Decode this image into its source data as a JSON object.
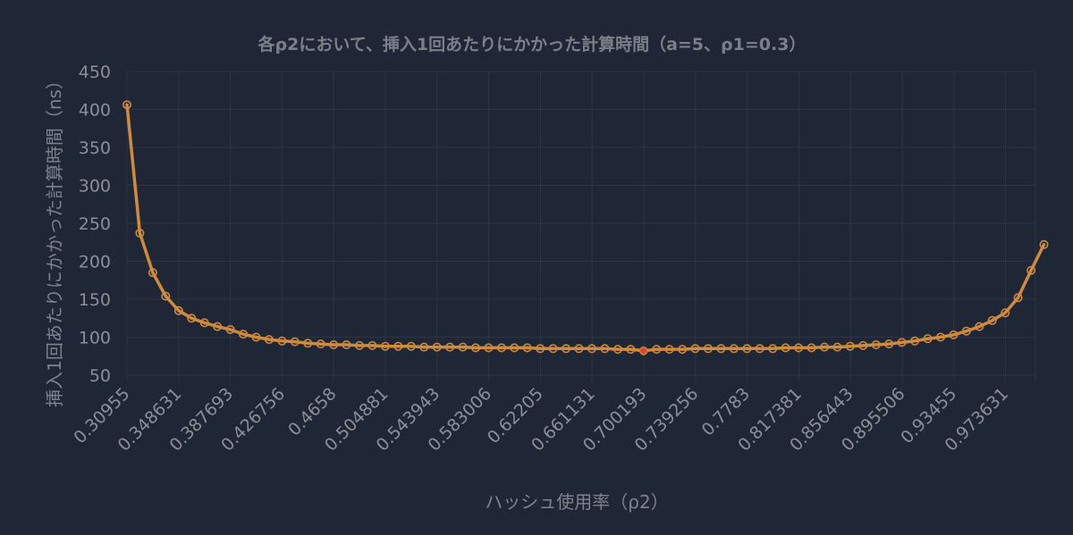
{
  "chart_data": {
    "type": "line",
    "title": "各ρ2において、挿入1回あたりにかかった計算時間（a=5、ρ1=0.3）",
    "xlabel": "ハッシュ使用率（ρ2）",
    "ylabel": "挿入1回あたりにかかった計算時間（ns）",
    "ylim": [
      50,
      450
    ],
    "yticks": [
      50,
      100,
      150,
      200,
      250,
      300,
      350,
      400,
      450
    ],
    "xticks": [
      "0.30955",
      "0.348631",
      "0.387693",
      "0.426756",
      "0.4658",
      "0.504881",
      "0.543943",
      "0.583006",
      "0.62205",
      "0.661131",
      "0.700193",
      "0.739256",
      "0.7783",
      "0.817381",
      "0.856443",
      "0.895506",
      "0.93455",
      "0.973631"
    ],
    "xlim": [
      0.30955,
      0.99
    ],
    "grid": true,
    "highlight_index": 40,
    "series": [
      {
        "color": "#d08a3c",
        "highlight_color": "#e0452a",
        "points": [
          [
            0.30955,
            406
          ],
          [
            0.3193,
            237
          ],
          [
            0.32907,
            185
          ],
          [
            0.33884,
            154
          ],
          [
            0.34863,
            135
          ],
          [
            0.3584,
            125
          ],
          [
            0.36817,
            119
          ],
          [
            0.37794,
            114
          ],
          [
            0.38769,
            110
          ],
          [
            0.39745,
            104
          ],
          [
            0.40722,
            100
          ],
          [
            0.41699,
            97
          ],
          [
            0.42676,
            95
          ],
          [
            0.43652,
            94
          ],
          [
            0.44628,
            92
          ],
          [
            0.45604,
            91
          ],
          [
            0.4658,
            90
          ],
          [
            0.47557,
            90
          ],
          [
            0.48534,
            89
          ],
          [
            0.49511,
            89
          ],
          [
            0.50488,
            88
          ],
          [
            0.51465,
            88
          ],
          [
            0.52441,
            88
          ],
          [
            0.53418,
            87
          ],
          [
            0.54394,
            87
          ],
          [
            0.55371,
            87
          ],
          [
            0.56348,
            87
          ],
          [
            0.57324,
            86
          ],
          [
            0.58301,
            86
          ],
          [
            0.59277,
            86
          ],
          [
            0.60253,
            86
          ],
          [
            0.61229,
            86
          ],
          [
            0.62205,
            85
          ],
          [
            0.63182,
            85
          ],
          [
            0.64159,
            85
          ],
          [
            0.65136,
            85
          ],
          [
            0.66113,
            85
          ],
          [
            0.67089,
            85
          ],
          [
            0.68066,
            84
          ],
          [
            0.69043,
            84
          ],
          [
            0.70019,
            82
          ],
          [
            0.70996,
            84
          ],
          [
            0.71972,
            84
          ],
          [
            0.72949,
            84
          ],
          [
            0.73926,
            85
          ],
          [
            0.74902,
            85
          ],
          [
            0.75878,
            85
          ],
          [
            0.76854,
            85
          ],
          [
            0.7783,
            85
          ],
          [
            0.78807,
            85
          ],
          [
            0.79784,
            85
          ],
          [
            0.80761,
            86
          ],
          [
            0.81738,
            86
          ],
          [
            0.82715,
            86
          ],
          [
            0.83691,
            87
          ],
          [
            0.84668,
            87
          ],
          [
            0.85644,
            88
          ],
          [
            0.86621,
            89
          ],
          [
            0.87597,
            90
          ],
          [
            0.88574,
            91
          ],
          [
            0.89551,
            93
          ],
          [
            0.90527,
            95
          ],
          [
            0.91503,
            98
          ],
          [
            0.92479,
            100
          ],
          [
            0.93455,
            103
          ],
          [
            0.94432,
            108
          ],
          [
            0.95409,
            114
          ],
          [
            0.96386,
            122
          ],
          [
            0.97363,
            132
          ],
          [
            0.9834,
            152
          ],
          [
            0.99317,
            188
          ],
          [
            1.00294,
            222
          ]
        ]
      }
    ]
  }
}
